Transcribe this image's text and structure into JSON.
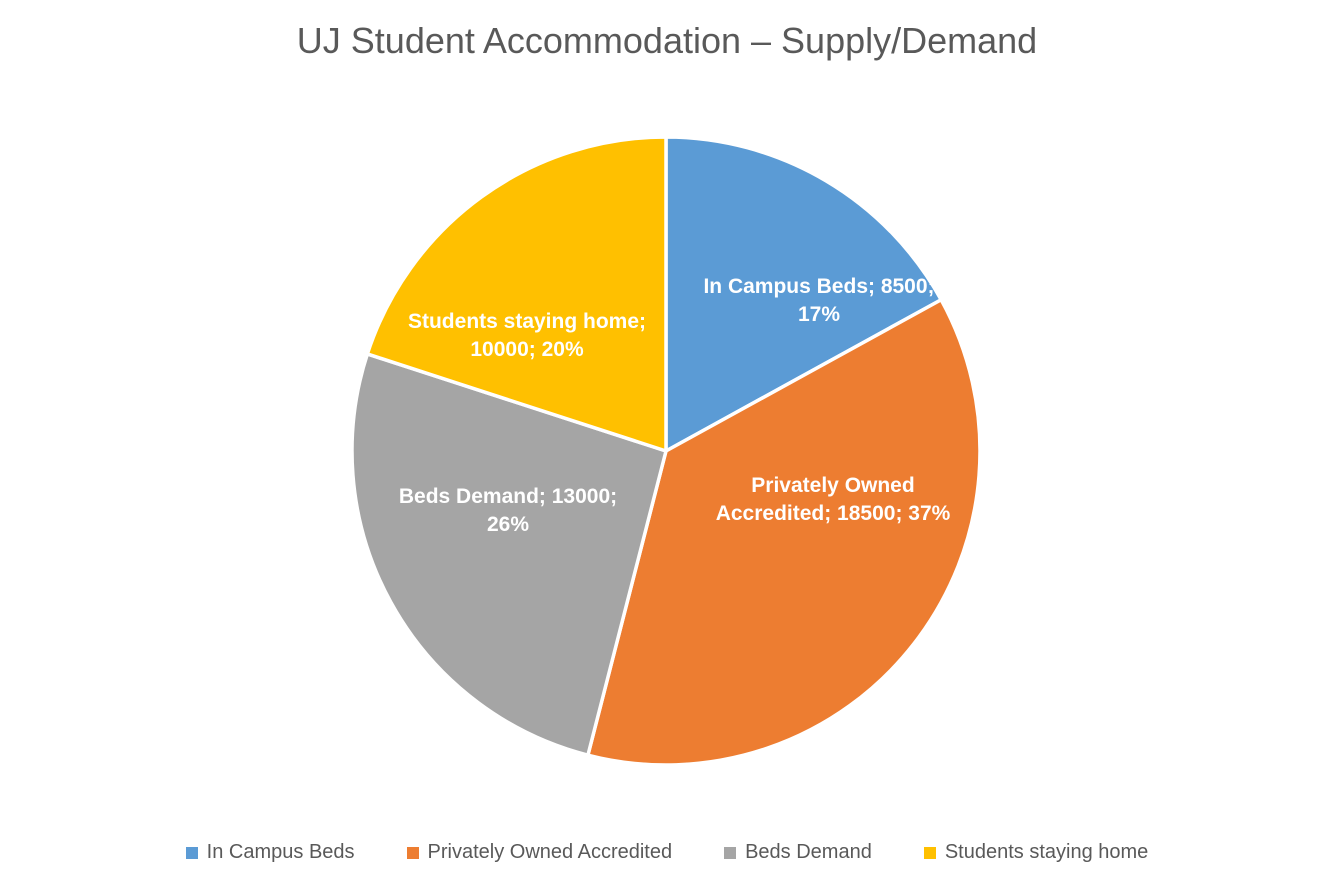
{
  "chart_data": {
    "type": "pie",
    "title": "UJ Student Accommodation – Supply/Demand",
    "categories": [
      "In Campus Beds",
      "Privately Owned Accredited",
      "Beds Demand",
      "Students staying home"
    ],
    "values": [
      8500,
      18500,
      13000,
      10000
    ],
    "percentages": [
      "17%",
      "37%",
      "26%",
      "20%"
    ],
    "colors": [
      "#5B9BD5",
      "#ED7D31",
      "#A5A5A5",
      "#FFC000"
    ],
    "total": 50000,
    "start_angle_deg": -90,
    "direction": "clockwise",
    "legend_position": "bottom",
    "data_labels": [
      {
        "lines": [
          "In Campus Beds; 8500;",
          "17%"
        ]
      },
      {
        "lines": [
          "Privately Owned",
          "Accredited; 18500; 37%"
        ]
      },
      {
        "lines": [
          "Beds Demand; 13000;",
          "26%"
        ]
      },
      {
        "lines": [
          "Students staying home;",
          "10000; 20%"
        ]
      }
    ]
  },
  "legend": {
    "items": [
      {
        "label": "In Campus Beds",
        "color": "#5B9BD5"
      },
      {
        "label": "Privately Owned Accredited",
        "color": "#ED7D31"
      },
      {
        "label": "Beds Demand",
        "color": "#A5A5A5"
      },
      {
        "label": "Students staying home",
        "color": "#FFC000"
      }
    ]
  },
  "style_colors": {
    "title_text": "#595959",
    "legend_text": "#595959",
    "data_label_text": "#FFFFFF",
    "slice_border": "#FFFFFF"
  }
}
